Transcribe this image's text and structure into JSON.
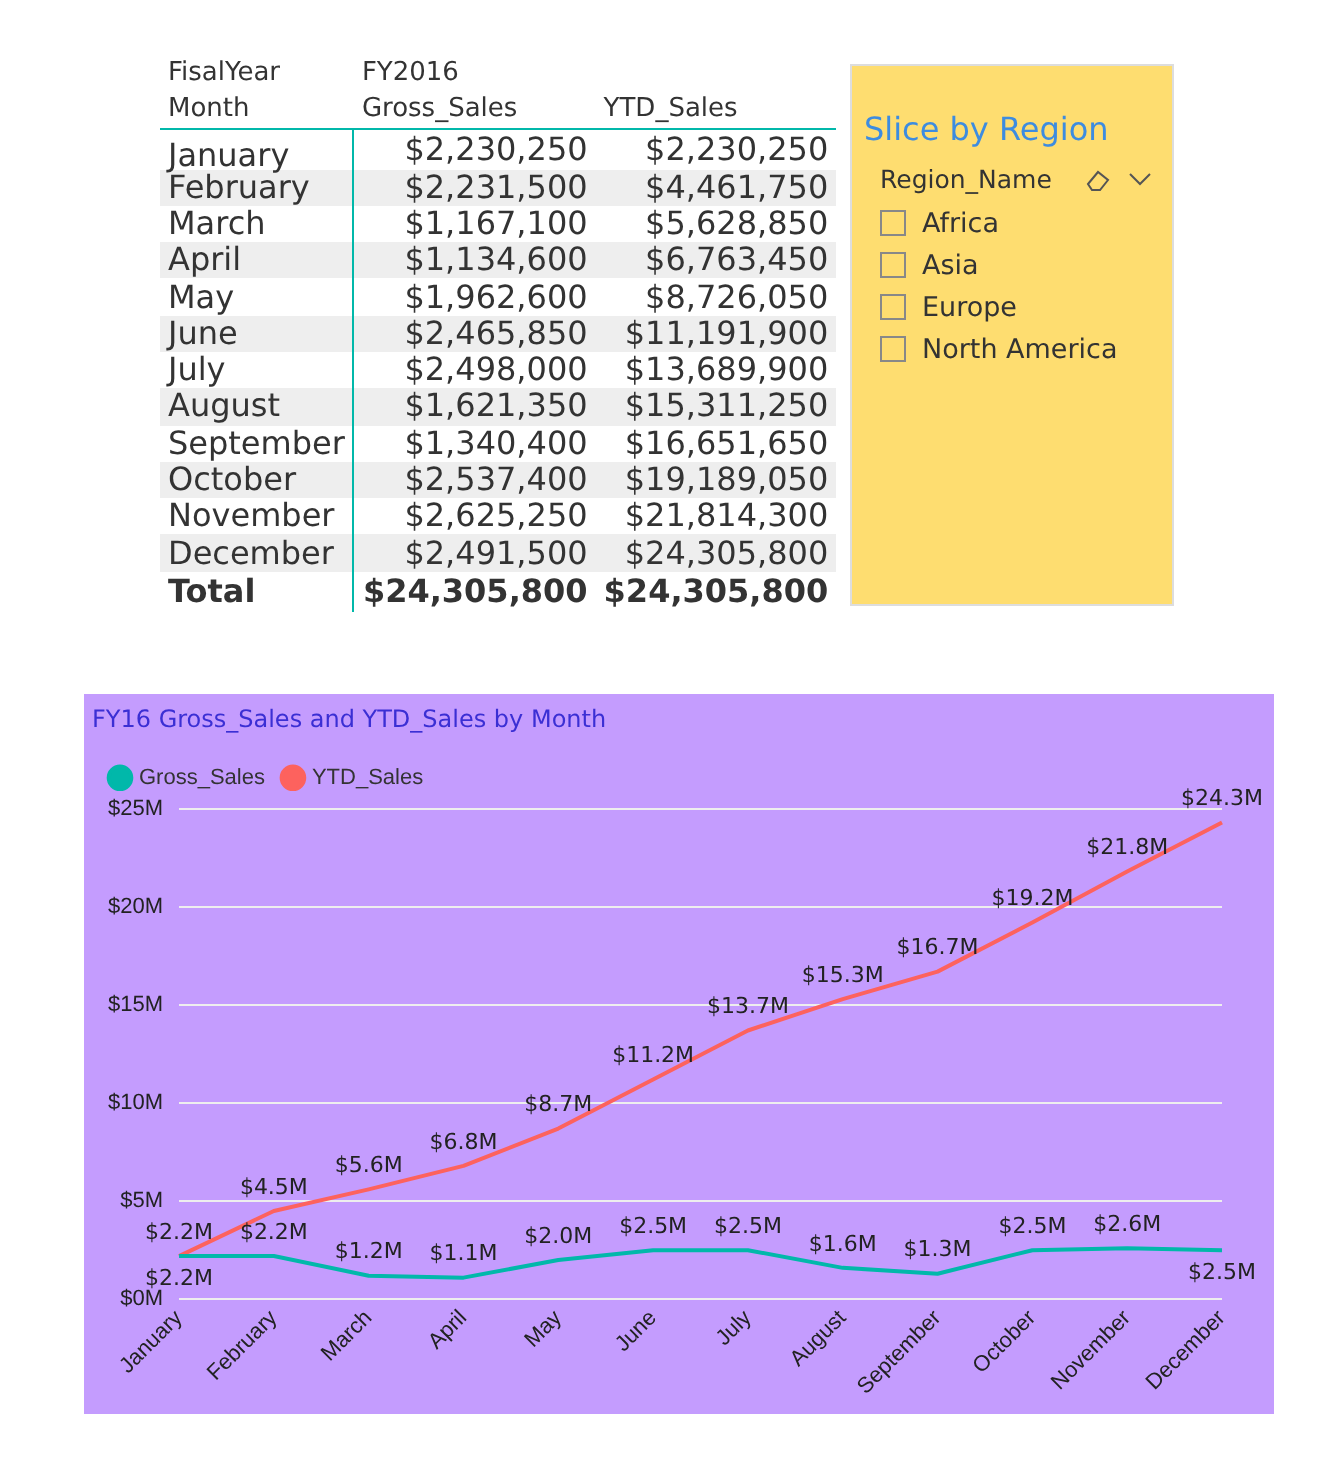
{
  "chart_data": [
    {
      "type": "other",
      "annotations": [
        "FisalYear",
        "FY2016"
      ],
      "xlabel": "Month",
      "categories": [
        "January",
        "February",
        "March",
        "April",
        "May",
        "June",
        "July",
        "August",
        "September",
        "October",
        "November",
        "December",
        "Total"
      ],
      "series": [
        {
          "name": "Gross_Sales",
          "values": [
            2230250,
            2231500,
            1167100,
            1134600,
            1962600,
            2465850,
            2498000,
            1621350,
            1340400,
            2537400,
            2625250,
            2491500,
            24305800
          ],
          "value_labels": [
            "$2,230,250",
            "$2,231,500",
            "$1,167,100",
            "$1,134,600",
            "$1,962,600",
            "$2,465,850",
            "$2,498,000",
            "$1,621,350",
            "$1,340,400",
            "$2,537,400",
            "$2,625,250",
            "$2,491,500",
            "$24,305,800"
          ]
        },
        {
          "name": "YTD_Sales",
          "values": [
            2230250,
            4461750,
            5628850,
            6763450,
            8726050,
            11191900,
            13689900,
            15311250,
            16651650,
            19189050,
            21814300,
            24305800,
            24305800
          ],
          "value_labels": [
            "$2,230,250",
            "$4,461,750",
            "$5,628,850",
            "$6,763,450",
            "$8,726,050",
            "$11,191,900",
            "$13,689,900",
            "$15,311,250",
            "$16,651,650",
            "$19,189,050",
            "$21,814,300",
            "$24,305,800",
            "$24,305,800"
          ]
        }
      ]
    },
    {
      "type": "other",
      "title": "Slice by Region",
      "xlabel": "Region_Name",
      "categories": [
        "Africa",
        "Asia",
        "Europe",
        "North America"
      ]
    },
    {
      "type": "line",
      "title": "FY16 Gross_Sales and YTD_Sales by Month",
      "categories": [
        "January",
        "February",
        "March",
        "April",
        "May",
        "June",
        "July",
        "August",
        "September",
        "October",
        "November",
        "December"
      ],
      "series": [
        {
          "name": "Gross_Sales",
          "color": "#01b8aa",
          "values": [
            2.2,
            2.2,
            1.2,
            1.1,
            2.0,
            2.5,
            2.5,
            1.6,
            1.3,
            2.5,
            2.6,
            2.5
          ],
          "value_labels": [
            "$2.2M",
            "$2.2M",
            "$1.2M",
            "$1.1M",
            "$2.0M",
            "$2.5M",
            "$2.5M",
            "$1.6M",
            "$1.3M",
            "$2.5M",
            "$2.6M",
            "$2.5M"
          ]
        },
        {
          "name": "YTD_Sales",
          "color": "#fd625e",
          "values": [
            2.2,
            4.5,
            5.6,
            6.8,
            8.7,
            11.2,
            13.7,
            15.3,
            16.7,
            19.2,
            21.8,
            24.3
          ],
          "value_labels": [
            "$2.2M",
            "$4.5M",
            "$5.6M",
            "$6.8M",
            "$8.7M",
            "$11.2M",
            "$13.7M",
            "$15.3M",
            "$16.7M",
            "$19.2M",
            "$21.8M",
            "$24.3M"
          ]
        }
      ],
      "ylim": [
        0,
        25
      ],
      "yticks": [
        {
          "value": 0,
          "label": "$0M"
        },
        {
          "value": 5,
          "label": "$5M"
        },
        {
          "value": 10,
          "label": "$10M"
        },
        {
          "value": 15,
          "label": "$15M"
        },
        {
          "value": 20,
          "label": "$20M"
        },
        {
          "value": 25,
          "label": "$25M"
        }
      ],
      "grid": "y",
      "legend": "top left"
    }
  ]
}
